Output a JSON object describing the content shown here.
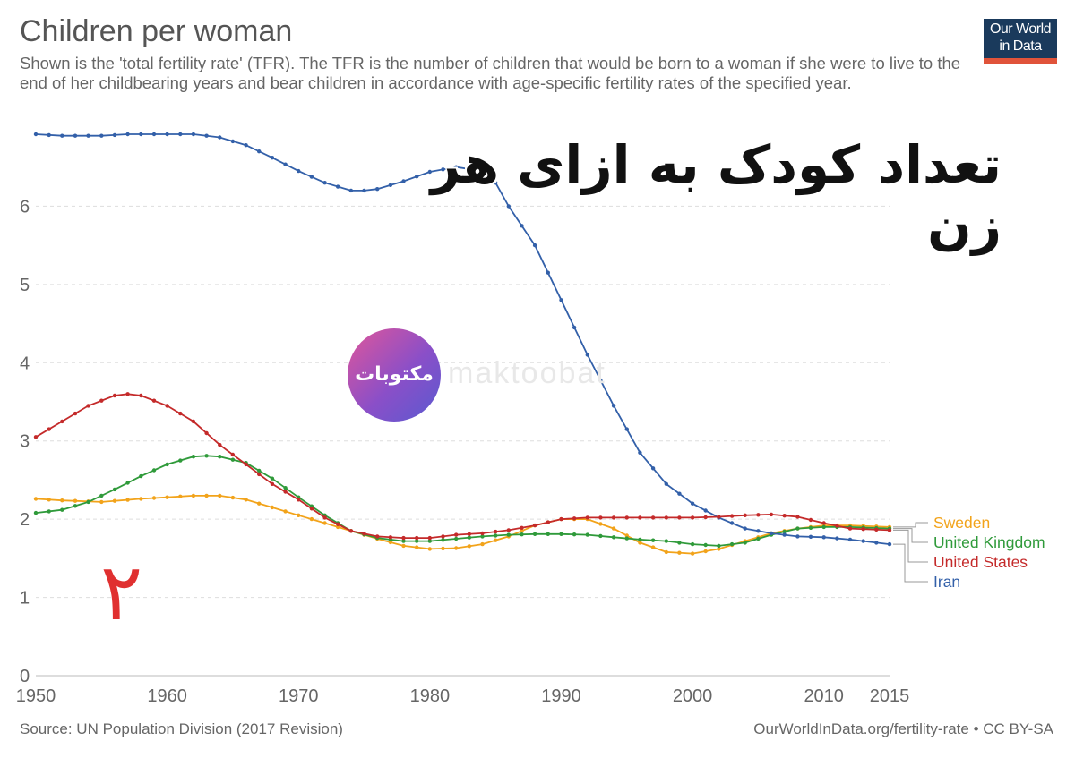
{
  "header": {
    "title": "Children per woman",
    "subtitle": "Shown is the 'total fertility rate' (TFR). The TFR is the number of children that would be born to a woman if she were to live to the end of her childbearing years and bear children in accordance with age-specific fertility rates of the specified year.",
    "logo_line1": "Our World",
    "logo_line2": "in Data"
  },
  "footer": {
    "source": "Source: UN Population Division (2017 Revision)",
    "credit": "OurWorldInData.org/fertility-rate • CC BY-SA"
  },
  "overlays": {
    "persian_title": "تعداد کودک به ازای هر زن",
    "badge_text": "مکتوبات",
    "watermark": "maktoobat",
    "numeral": "۲"
  },
  "colors": {
    "Iran": "#3360a9",
    "United States": "#c42a2a",
    "United Kingdom": "#2f9a3a",
    "Sweden": "#f2a31a",
    "grid": "#dddddd",
    "axis_text": "#666666"
  },
  "chart_data": {
    "type": "line",
    "title": "Children per woman",
    "xlabel": "",
    "ylabel": "",
    "xlim": [
      1950,
      2015
    ],
    "ylim": [
      0,
      7
    ],
    "x_ticks": [
      1950,
      1960,
      1970,
      1980,
      1990,
      2000,
      2010,
      2015
    ],
    "y_ticks": [
      0,
      1,
      2,
      3,
      4,
      5,
      6
    ],
    "grid": "horizontal dashed",
    "legend": "right, end of lines",
    "series": [
      {
        "name": "Sweden",
        "points": [
          [
            1950,
            2.26
          ],
          [
            1952,
            2.24
          ],
          [
            1955,
            2.22
          ],
          [
            1958,
            2.26
          ],
          [
            1960,
            2.28
          ],
          [
            1962,
            2.3
          ],
          [
            1964,
            2.3
          ],
          [
            1966,
            2.25
          ],
          [
            1968,
            2.15
          ],
          [
            1970,
            2.05
          ],
          [
            1972,
            1.95
          ],
          [
            1974,
            1.85
          ],
          [
            1976,
            1.75
          ],
          [
            1978,
            1.66
          ],
          [
            1980,
            1.62
          ],
          [
            1982,
            1.63
          ],
          [
            1984,
            1.68
          ],
          [
            1986,
            1.78
          ],
          [
            1988,
            1.92
          ],
          [
            1990,
            2.0
          ],
          [
            1992,
            2.0
          ],
          [
            1994,
            1.88
          ],
          [
            1996,
            1.7
          ],
          [
            1998,
            1.58
          ],
          [
            2000,
            1.56
          ],
          [
            2002,
            1.62
          ],
          [
            2004,
            1.72
          ],
          [
            2006,
            1.82
          ],
          [
            2008,
            1.88
          ],
          [
            2010,
            1.92
          ],
          [
            2012,
            1.92
          ],
          [
            2015,
            1.9
          ]
        ]
      },
      {
        "name": "United Kingdom",
        "points": [
          [
            1950,
            2.08
          ],
          [
            1952,
            2.12
          ],
          [
            1954,
            2.22
          ],
          [
            1956,
            2.38
          ],
          [
            1958,
            2.55
          ],
          [
            1960,
            2.7
          ],
          [
            1962,
            2.8
          ],
          [
            1963,
            2.81
          ],
          [
            1964,
            2.8
          ],
          [
            1966,
            2.72
          ],
          [
            1968,
            2.52
          ],
          [
            1970,
            2.28
          ],
          [
            1972,
            2.05
          ],
          [
            1974,
            1.85
          ],
          [
            1976,
            1.76
          ],
          [
            1978,
            1.72
          ],
          [
            1980,
            1.72
          ],
          [
            1982,
            1.75
          ],
          [
            1984,
            1.78
          ],
          [
            1986,
            1.8
          ],
          [
            1988,
            1.81
          ],
          [
            1990,
            1.81
          ],
          [
            1992,
            1.8
          ],
          [
            1994,
            1.77
          ],
          [
            1996,
            1.74
          ],
          [
            1998,
            1.72
          ],
          [
            2000,
            1.68
          ],
          [
            2002,
            1.66
          ],
          [
            2004,
            1.7
          ],
          [
            2006,
            1.8
          ],
          [
            2008,
            1.88
          ],
          [
            2010,
            1.9
          ],
          [
            2012,
            1.9
          ],
          [
            2015,
            1.88
          ]
        ]
      },
      {
        "name": "United States",
        "points": [
          [
            1950,
            3.05
          ],
          [
            1952,
            3.25
          ],
          [
            1954,
            3.45
          ],
          [
            1956,
            3.58
          ],
          [
            1957,
            3.6
          ],
          [
            1958,
            3.58
          ],
          [
            1960,
            3.45
          ],
          [
            1962,
            3.25
          ],
          [
            1964,
            2.95
          ],
          [
            1966,
            2.7
          ],
          [
            1968,
            2.45
          ],
          [
            1970,
            2.25
          ],
          [
            1972,
            2.02
          ],
          [
            1974,
            1.85
          ],
          [
            1976,
            1.78
          ],
          [
            1978,
            1.76
          ],
          [
            1980,
            1.76
          ],
          [
            1982,
            1.8
          ],
          [
            1984,
            1.82
          ],
          [
            1986,
            1.86
          ],
          [
            1988,
            1.92
          ],
          [
            1990,
            2.0
          ],
          [
            1992,
            2.02
          ],
          [
            1994,
            2.02
          ],
          [
            1996,
            2.02
          ],
          [
            1998,
            2.02
          ],
          [
            2000,
            2.02
          ],
          [
            2002,
            2.03
          ],
          [
            2004,
            2.05
          ],
          [
            2006,
            2.06
          ],
          [
            2008,
            2.03
          ],
          [
            2010,
            1.95
          ],
          [
            2012,
            1.88
          ],
          [
            2015,
            1.86
          ]
        ]
      },
      {
        "name": "Iran",
        "points": [
          [
            1950,
            6.92
          ],
          [
            1952,
            6.9
          ],
          [
            1955,
            6.9
          ],
          [
            1957,
            6.92
          ],
          [
            1960,
            6.92
          ],
          [
            1962,
            6.92
          ],
          [
            1964,
            6.88
          ],
          [
            1966,
            6.78
          ],
          [
            1968,
            6.62
          ],
          [
            1970,
            6.45
          ],
          [
            1972,
            6.3
          ],
          [
            1974,
            6.2
          ],
          [
            1975,
            6.2
          ],
          [
            1976,
            6.22
          ],
          [
            1978,
            6.32
          ],
          [
            1980,
            6.44
          ],
          [
            1982,
            6.5
          ],
          [
            1984,
            6.45
          ],
          [
            1985,
            6.3
          ],
          [
            1986,
            6.0
          ],
          [
            1988,
            5.5
          ],
          [
            1990,
            4.8
          ],
          [
            1992,
            4.1
          ],
          [
            1994,
            3.45
          ],
          [
            1996,
            2.85
          ],
          [
            1998,
            2.45
          ],
          [
            2000,
            2.2
          ],
          [
            2002,
            2.02
          ],
          [
            2004,
            1.88
          ],
          [
            2006,
            1.82
          ],
          [
            2008,
            1.78
          ],
          [
            2010,
            1.77
          ],
          [
            2012,
            1.74
          ],
          [
            2015,
            1.68
          ]
        ]
      }
    ]
  }
}
